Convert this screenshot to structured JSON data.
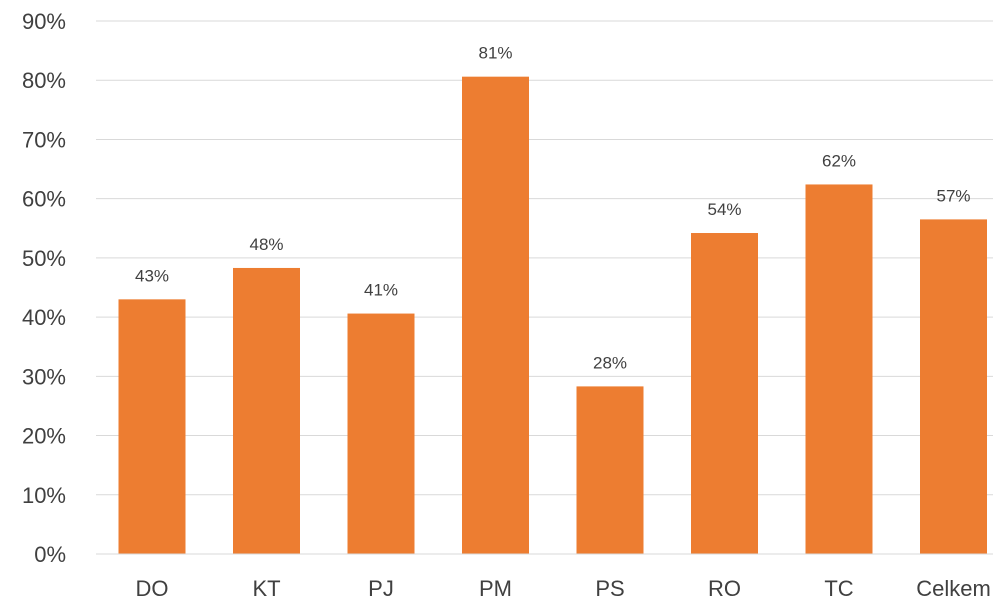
{
  "chart_data": {
    "type": "bar",
    "title": "",
    "xlabel": "",
    "ylabel": "",
    "categories": [
      "DO",
      "KT",
      "PJ",
      "PM",
      "PS",
      "RO",
      "TC",
      "Celkem"
    ],
    "values": [
      43,
      48,
      41,
      81,
      28,
      54,
      62,
      57
    ],
    "exact_values": [
      43.0,
      48.3,
      40.6,
      80.6,
      28.3,
      54.2,
      62.4,
      56.5
    ],
    "data_labels": [
      "43%",
      "48%",
      "41%",
      "81%",
      "28%",
      "54%",
      "62%",
      "57%"
    ],
    "ylim": [
      0,
      90
    ],
    "yticks": [
      0,
      10,
      20,
      30,
      40,
      50,
      60,
      70,
      80,
      90
    ],
    "ytick_labels": [
      "0%",
      "10%",
      "20%",
      "30%",
      "40%",
      "50%",
      "60%",
      "70%",
      "80%",
      "90%"
    ],
    "grid": true,
    "legend": "none",
    "bar_color": "#ED7D31",
    "grid_color": "#D9D9D9",
    "text_color": "#404040"
  }
}
